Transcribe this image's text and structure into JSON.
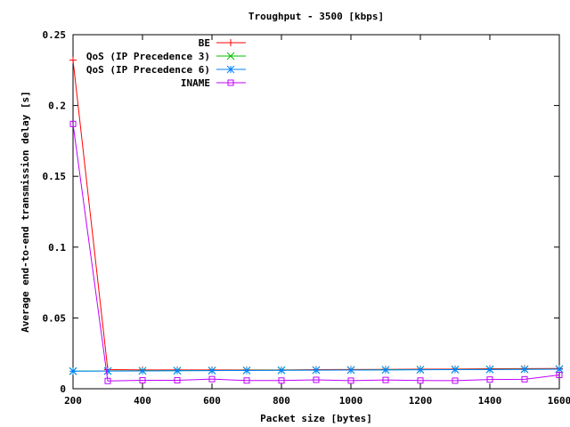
{
  "chart_data": {
    "type": "line",
    "title": "Troughput - 3500 [kbps]",
    "xlabel": "Packet size [bytes]",
    "ylabel": "Average end-to-end transmission delay [s]",
    "xlim": [
      200,
      1600
    ],
    "ylim": [
      0,
      0.25
    ],
    "x_ticks": [
      200,
      400,
      600,
      800,
      1000,
      1200,
      1400,
      1600
    ],
    "x_tick_labels": [
      "200",
      "400",
      "600",
      "800",
      "1000",
      "1200",
      "1400",
      "1600"
    ],
    "y_ticks": [
      0,
      0.05,
      0.1,
      0.15,
      0.2,
      0.25
    ],
    "y_tick_labels": [
      "0",
      "0.05",
      "0.1",
      "0.15",
      "0.2",
      "0.25"
    ],
    "grid": false,
    "legend_position": "top-left",
    "x": [
      200,
      300,
      400,
      500,
      600,
      700,
      800,
      900,
      1000,
      1100,
      1200,
      1300,
      1400,
      1500,
      1600
    ],
    "series": [
      {
        "name": "BE",
        "color": "#ff0000",
        "marker": "plus",
        "values": [
          0.232,
          0.0135,
          0.0133,
          0.0133,
          0.0133,
          0.0133,
          0.0133,
          0.0135,
          0.0136,
          0.0137,
          0.0138,
          0.0139,
          0.0141,
          0.0142,
          0.0143
        ]
      },
      {
        "name": "QoS (IP Precedence 3)",
        "color": "#00c000",
        "marker": "cross",
        "values": [
          0.0125,
          0.0126,
          0.0127,
          0.0128,
          0.0129,
          0.013,
          0.0131,
          0.0132,
          0.0133,
          0.0134,
          0.0135,
          0.0136,
          0.0137,
          0.0138,
          0.0139
        ]
      },
      {
        "name": "QoS (IP Precedence 6)",
        "color": "#0080ff",
        "marker": "star",
        "values": [
          0.0124,
          0.0125,
          0.0126,
          0.0127,
          0.0128,
          0.0129,
          0.013,
          0.0131,
          0.0132,
          0.0133,
          0.0134,
          0.0135,
          0.0136,
          0.0137,
          0.0138
        ]
      },
      {
        "name": "INAME",
        "color": "#c000ff",
        "marker": "square",
        "values": [
          0.187,
          0.0055,
          0.006,
          0.006,
          0.0068,
          0.0058,
          0.0058,
          0.0063,
          0.0057,
          0.0062,
          0.0058,
          0.0057,
          0.0065,
          0.0067,
          0.0097
        ]
      }
    ]
  }
}
